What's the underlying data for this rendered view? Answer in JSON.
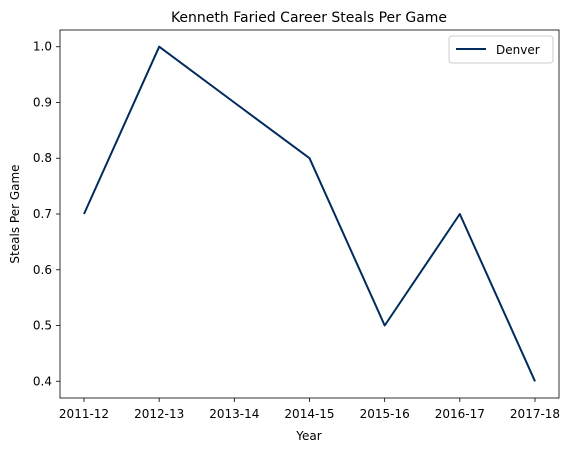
{
  "chart_data": {
    "type": "line",
    "title": "Kenneth Faried Career Steals Per Game",
    "xlabel": "Year",
    "ylabel": "Steals Per Game",
    "categories": [
      "2011-12",
      "2012-13",
      "2013-14",
      "2014-15",
      "2015-16",
      "2016-17",
      "2017-18"
    ],
    "series": [
      {
        "name": "Denver",
        "color": "#002b5c",
        "values": [
          0.7,
          1.0,
          0.9,
          0.8,
          0.5,
          0.7,
          0.4
        ]
      }
    ],
    "yticks": [
      "0.4",
      "0.5",
      "0.6",
      "0.7",
      "0.8",
      "0.9",
      "1.0"
    ],
    "ylim": [
      0.37,
      1.03
    ],
    "grid": false,
    "legend_position": "top-right"
  }
}
